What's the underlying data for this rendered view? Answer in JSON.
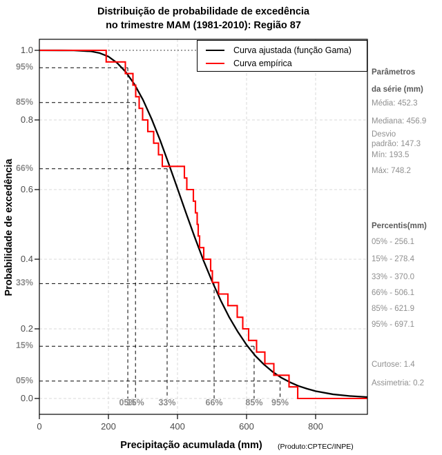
{
  "title": {
    "line1": "Distribuição de probabilidade de excedência",
    "line2": "no trimestre MAM (1981-2010): Região 87"
  },
  "axes": {
    "x_label": "Precipitação acumulada (mm)",
    "y_label": "Probabilidade de excedência",
    "credit": "(Produto:CPTEC/INPE)",
    "x_ticks": [
      {
        "value": 0,
        "label": "0"
      },
      {
        "value": 200,
        "label": "200"
      },
      {
        "value": 400,
        "label": "400"
      },
      {
        "value": 600,
        "label": "600"
      },
      {
        "value": 800,
        "label": "800"
      }
    ],
    "y_ticks": [
      {
        "value": 1.0,
        "label": "1.0"
      },
      {
        "value": 0.8,
        "label": "0.8"
      },
      {
        "value": 0.6,
        "label": "0.6"
      },
      {
        "value": 0.4,
        "label": "0.4"
      },
      {
        "value": 0.2,
        "label": "0.2"
      },
      {
        "value": 0.0,
        "label": "0.0"
      }
    ]
  },
  "legend": {
    "items": [
      {
        "label": "Curva ajustada (função Gama)",
        "color": "#000000"
      },
      {
        "label": "Curva empírica",
        "color": "#ff0000"
      }
    ]
  },
  "sidebar": {
    "params_title": "Parâmetros\nda série (mm)",
    "media": "Média: 452.3",
    "mediana": "Mediana: 456.9",
    "desvio": "Desvio\npadrão: 147.3",
    "min": "Mín: 193.5",
    "max": "Máx: 748.2",
    "percentis_title": "Percentis(mm)",
    "p05": "05% - 256.1",
    "p15": "15% - 278.4",
    "p33": "33% - 370.0",
    "p66": "66% - 506.1",
    "p85": "85% - 621.9",
    "p95": "95% - 697.1",
    "curtose": "Curtose: 1.4",
    "assimetria": "Assimetria: 0.2"
  },
  "chart_data": {
    "type": "line",
    "title": "Distribuição de probabilidade de excedência no trimestre MAM (1981-2010): Região 87",
    "xlabel": "Precipitação acumulada (mm)",
    "ylabel": "Probabilidade de excedência",
    "xlim": [
      0,
      950
    ],
    "ylim": [
      0,
      1
    ],
    "grid": true,
    "x_gridlines": [
      200,
      400,
      600,
      800
    ],
    "y_gridlines": [
      0,
      0.2,
      0.4,
      0.6,
      0.8
    ],
    "top_reference_line": 1.0,
    "legend_position": "top-right",
    "series": [
      {
        "name": "Curva ajustada (função Gama)",
        "type": "smooth-line",
        "color": "#000000",
        "points": [
          [
            0,
            1
          ],
          [
            60,
            0.9999
          ],
          [
            100,
            0.9997
          ],
          [
            150,
            0.997
          ],
          [
            175,
            0.992
          ],
          [
            200,
            0.982
          ],
          [
            225,
            0.964
          ],
          [
            250,
            0.938
          ],
          [
            275,
            0.903
          ],
          [
            300,
            0.858
          ],
          [
            325,
            0.803
          ],
          [
            350,
            0.741
          ],
          [
            375,
            0.673
          ],
          [
            400,
            0.603
          ],
          [
            425,
            0.532
          ],
          [
            450,
            0.463
          ],
          [
            475,
            0.397
          ],
          [
            500,
            0.337
          ],
          [
            525,
            0.282
          ],
          [
            550,
            0.233
          ],
          [
            575,
            0.191
          ],
          [
            600,
            0.154
          ],
          [
            625,
            0.123
          ],
          [
            650,
            0.098
          ],
          [
            675,
            0.077
          ],
          [
            700,
            0.06
          ],
          [
            725,
            0.047
          ],
          [
            750,
            0.036
          ],
          [
            775,
            0.028
          ],
          [
            800,
            0.021
          ],
          [
            850,
            0.012
          ],
          [
            900,
            0.007
          ],
          [
            950,
            0.004
          ]
        ]
      },
      {
        "name": "Curva empírica",
        "type": "step-exceedance",
        "color": "#ff0000",
        "n": 30,
        "x_end": 950,
        "sorted_values": [
          193.5,
          249,
          271,
          279,
          289,
          299,
          314,
          331,
          345,
          356,
          420,
          427,
          446,
          452,
          457,
          460,
          464,
          476,
          496,
          501,
          519,
          546,
          573,
          589,
          606,
          629,
          653,
          679,
          723,
          748.2
        ]
      }
    ],
    "percentile_crosshairs": [
      {
        "x_label": "05%",
        "x_mm": 256.1,
        "prob": 0.95,
        "prob_label": "95%"
      },
      {
        "x_label": "15%",
        "x_mm": 278.4,
        "prob": 0.85,
        "prob_label": "85%"
      },
      {
        "x_label": "33%",
        "x_mm": 370.0,
        "prob": 0.66,
        "prob_label": "66%"
      },
      {
        "x_label": "66%",
        "x_mm": 506.1,
        "prob": 0.33,
        "prob_label": "33%"
      },
      {
        "x_label": "85%",
        "x_mm": 621.9,
        "prob": 0.15,
        "prob_label": "15%"
      },
      {
        "x_label": "95%",
        "x_mm": 697.1,
        "prob": 0.05,
        "prob_label": "05%"
      }
    ],
    "statistics": {
      "media": 452.3,
      "mediana": 456.9,
      "desvio_padrao": 147.3,
      "min": 193.5,
      "max": 748.2,
      "curtose": 1.4,
      "assimetria": 0.2
    }
  }
}
